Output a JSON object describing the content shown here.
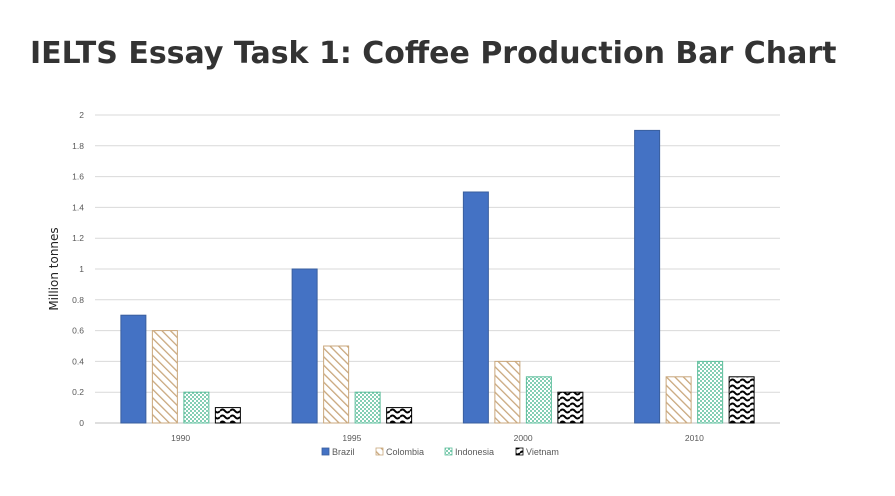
{
  "page": {
    "title": "IELTS Essay Task 1: Coffee Production Bar Chart"
  },
  "colors": {
    "Brazil": "#4472C4",
    "Colombia": "#C9A77C",
    "Indonesia": "#5DBF9C",
    "Vietnam": "#000000",
    "grid": "#D9D9D9",
    "axis": "#BFBFBF"
  },
  "chart_data": {
    "type": "bar",
    "title": "",
    "xlabel": "",
    "ylabel": "Million tonnes",
    "ylim": [
      0,
      2
    ],
    "yticks": [
      "0",
      "0.2",
      "0.4",
      "0.6",
      "0.8",
      "1",
      "1.2",
      "1.4",
      "1.6",
      "1.8",
      "2"
    ],
    "categories": [
      "1990",
      "1995",
      "2000",
      "2010"
    ],
    "series": [
      {
        "name": "Brazil",
        "values": [
          0.7,
          1.0,
          1.5,
          1.9
        ],
        "pattern": "solid"
      },
      {
        "name": "Colombia",
        "values": [
          0.6,
          0.5,
          0.4,
          0.3
        ],
        "pattern": "diagonal-stripes"
      },
      {
        "name": "Indonesia",
        "values": [
          0.2,
          0.2,
          0.3,
          0.4
        ],
        "pattern": "dots"
      },
      {
        "name": "Vietnam",
        "values": [
          0.1,
          0.1,
          0.2,
          0.3
        ],
        "pattern": "waves"
      }
    ],
    "grid": true,
    "legend_position": "bottom-center"
  }
}
